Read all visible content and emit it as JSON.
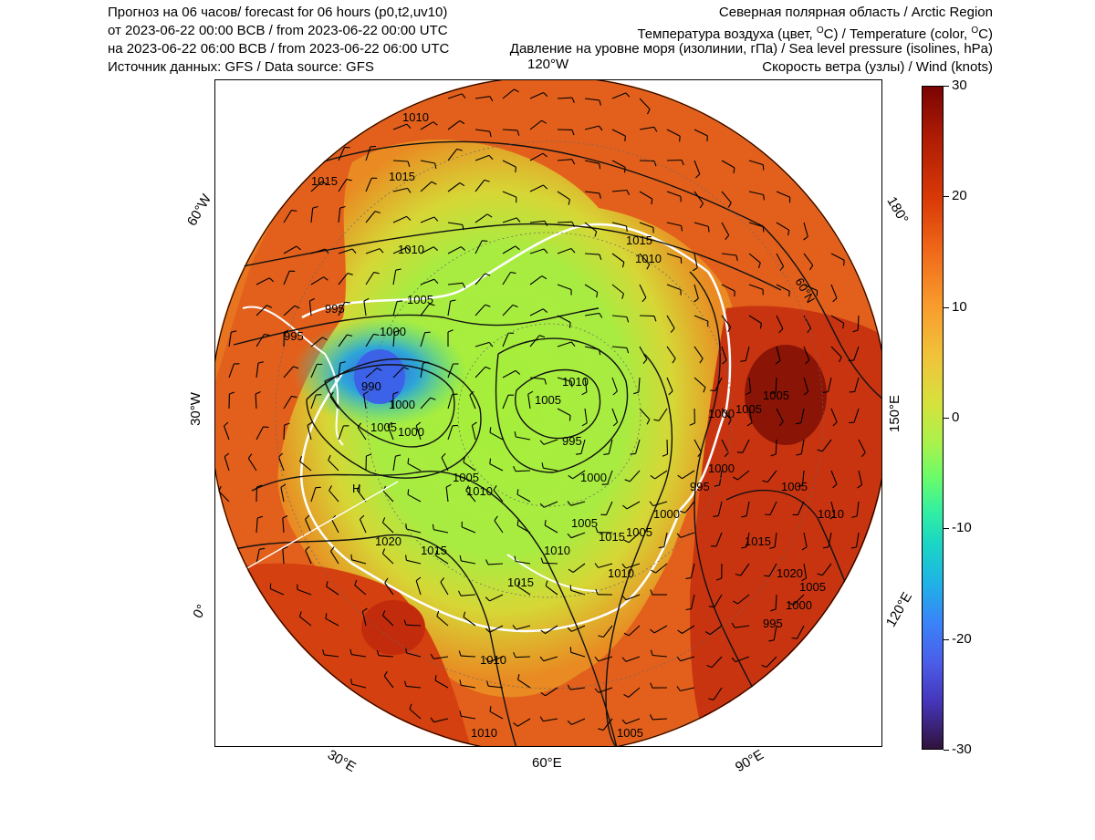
{
  "header": {
    "line1": "Прогноз на 06 часов/ forecast for 06 hours (p0,t2,uv10)",
    "line2": "от 2023-06-22 00:00 BCB / from 2023-06-22 00:00 UTC",
    "line3": "на 2023-06-22 06:00 BCB / from 2023-06-22 06:00 UTC",
    "line4": "Источник данных: GFS / Data source: GFS",
    "region": "Северная полярная область / Arctic Region",
    "temperature_label_pre": "Температура воздуха (цвет, ",
    "temperature_label_post": "C) / Temperature (color, ",
    "temperature_label_end": "C)",
    "degree_sup": "O",
    "pressure_label": "Давление на уровне моря (изолинии, гПа) / Sea level pressure (isolines, hPa)",
    "wind_label": "Скорость ветра (узлы) / Wind (knots)"
  },
  "map": {
    "longitude_labels": {
      "w120": "120°W",
      "w60": "60°W",
      "w30": "30°W",
      "zero": "0°",
      "e30": "30°E",
      "e60": "60°E",
      "e90": "90°E",
      "e120": "120°E",
      "e150": "150°E",
      "e180": "180°"
    },
    "latitude_label": "60°N",
    "pressure_labels": [
      "1015",
      "1010",
      "1010",
      "1020",
      "1015",
      "1015",
      "1010",
      "1005",
      "995",
      "1000",
      "995",
      "990",
      "1000",
      "1005",
      "1000",
      "1005",
      "1010",
      "1015",
      "1020",
      "1015",
      "1010",
      "1005",
      "1000",
      "995",
      "1005",
      "1010",
      "1015",
      "1010",
      "1005",
      "1000",
      "995",
      "1000",
      "1005",
      "1010",
      "1015",
      "1005",
      "1000",
      "1005",
      "1010",
      "1015",
      "1020",
      "1005",
      "1000",
      "995",
      "1005",
      "1010",
      "1000",
      "1005",
      "1010",
      "1010"
    ],
    "low_marker": "H",
    "colors": {
      "land_warm": "#e0541a",
      "land_hot": "#8e1006",
      "ocean": "#9ee64a",
      "cold": "#2f6fe8"
    }
  },
  "colorbar": {
    "ticks": [
      "30",
      "20",
      "10",
      "0",
      "-10",
      "-20",
      "-30"
    ],
    "min": -30,
    "max": 30,
    "units": "°C"
  }
}
